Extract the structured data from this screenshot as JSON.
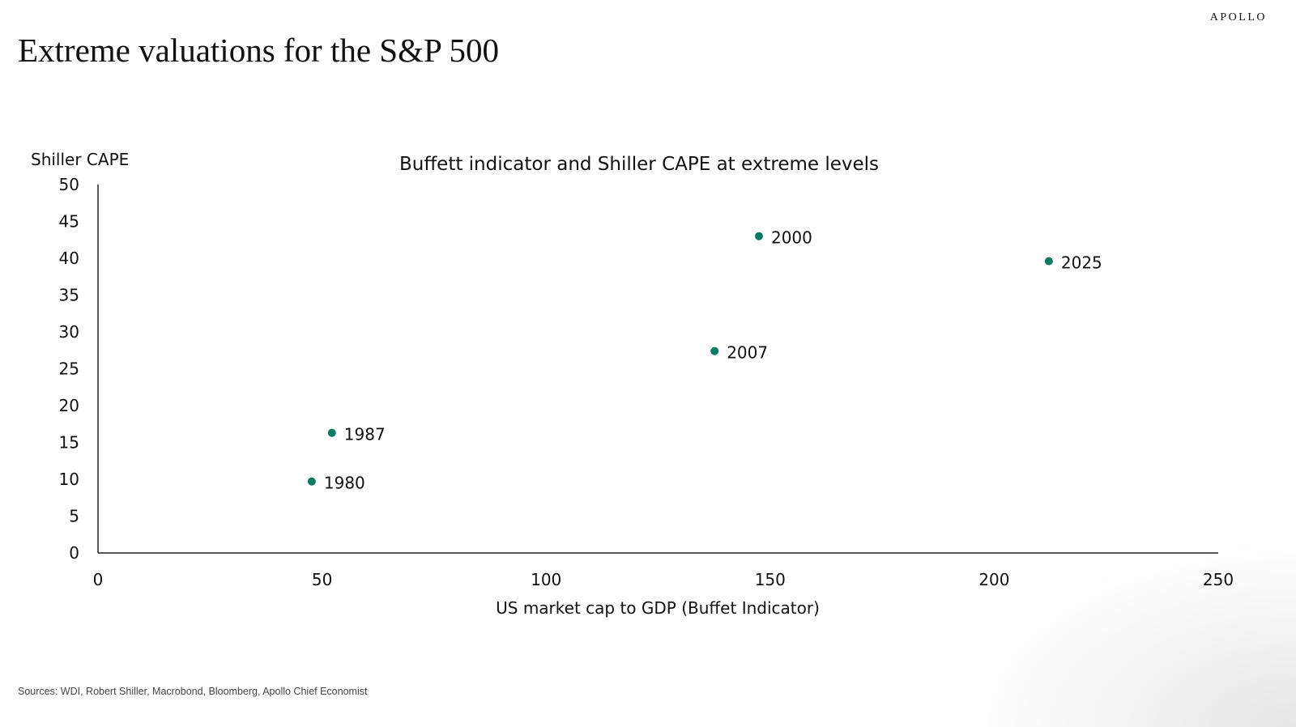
{
  "header": {
    "title": "Extreme valuations for the S&P 500",
    "logo": "APOLLO"
  },
  "footer": {
    "sources": "Sources: WDI, Robert Shiller, Macrobond, Bloomberg, Apollo Chief Economist"
  },
  "chart_data": {
    "type": "scatter",
    "title": "Buffett indicator and Shiller CAPE at extreme levels",
    "xlabel": "US market cap to GDP (Buffet Indicator)",
    "ylabel": "Shiller CAPE",
    "xlim": [
      0,
      250
    ],
    "ylim": [
      0,
      50
    ],
    "xticks": [
      0,
      50,
      100,
      150,
      200,
      250
    ],
    "yticks": [
      0,
      5,
      10,
      15,
      20,
      25,
      30,
      35,
      40,
      45,
      50
    ],
    "grid": false,
    "color": "#0b7a64",
    "points": [
      {
        "label": "1980",
        "x": 47.7,
        "y": 9.7
      },
      {
        "label": "1987",
        "x": 52.2,
        "y": 16.3
      },
      {
        "label": "2007",
        "x": 137.6,
        "y": 27.4
      },
      {
        "label": "2000",
        "x": 147.5,
        "y": 43.0
      },
      {
        "label": "2025",
        "x": 212.2,
        "y": 39.6
      }
    ]
  }
}
